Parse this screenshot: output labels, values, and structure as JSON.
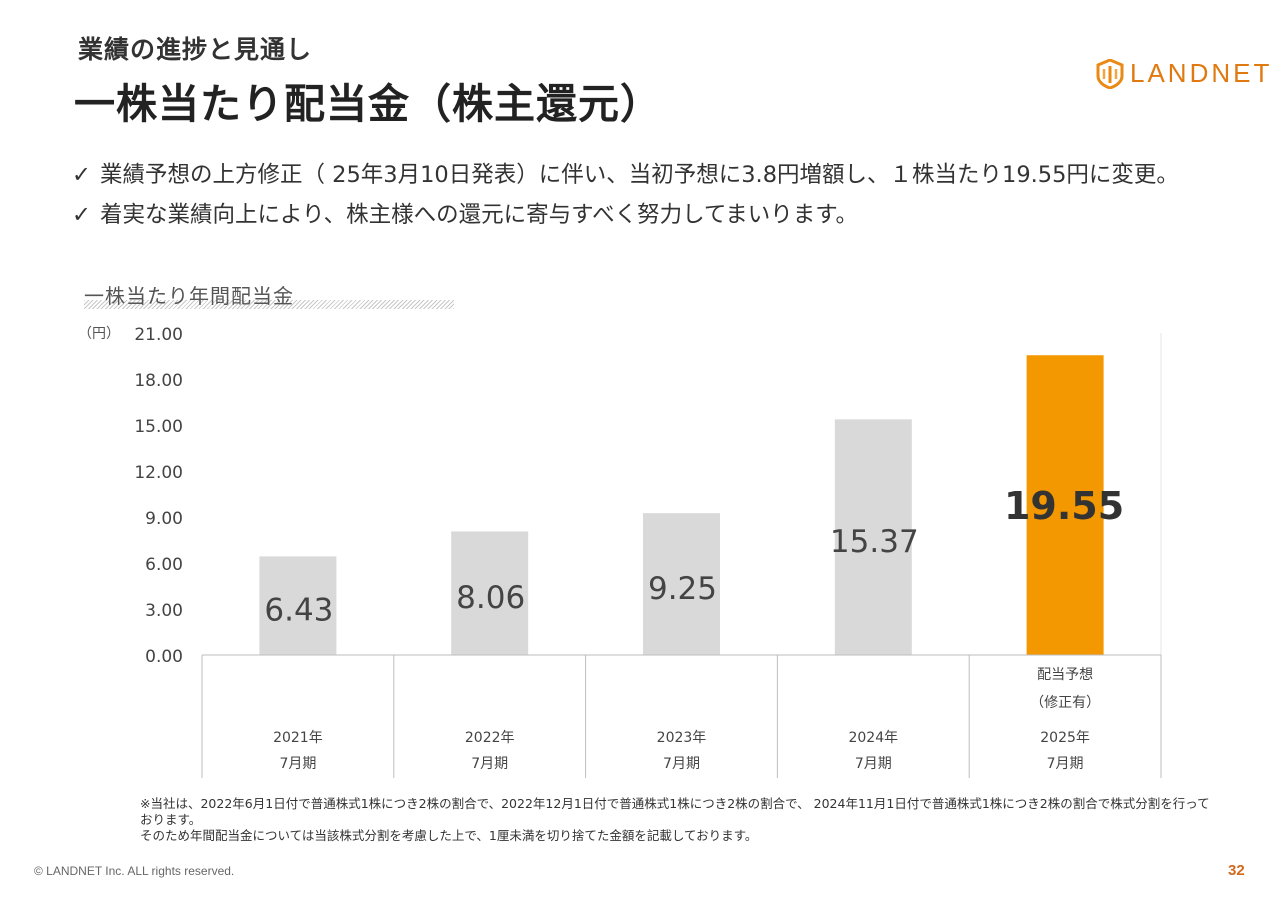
{
  "header": {
    "section": "業績の進捗と見通し",
    "title": "一株当たり配当金（株主還元）",
    "logo_text": "LANDNET",
    "logo_icon": "landnet-shield-icon"
  },
  "bullets": [
    {
      "check": "✓",
      "text": "業績予想の上方修正（ 25年3月10日発表）に伴い、当初予想に3.8円増額し、１株当たり19.55円に変更。"
    },
    {
      "check": "✓",
      "text": "着実な業績向上により、株主様への還元に寄与すべく努力してまいります。"
    }
  ],
  "chart_data": {
    "type": "bar",
    "title": "一株当たり年間配当金",
    "ylabel": "（円）",
    "ylim": [
      0,
      21
    ],
    "yticks": [
      "0.00",
      "3.00",
      "6.00",
      "9.00",
      "12.00",
      "15.00",
      "18.00",
      "21.00"
    ],
    "categories": [
      {
        "top": "",
        "sub": "",
        "year": "2021年",
        "period": "7月期"
      },
      {
        "top": "",
        "sub": "",
        "year": "2022年",
        "period": "7月期"
      },
      {
        "top": "",
        "sub": "",
        "year": "2023年",
        "period": "7月期"
      },
      {
        "top": "",
        "sub": "",
        "year": "2024年",
        "period": "7月期"
      },
      {
        "top": "配当予想",
        "sub": "（修正有）",
        "year": "2025年",
        "period": "7月期"
      }
    ],
    "values": [
      6.43,
      8.06,
      9.25,
      15.37,
      19.55
    ],
    "value_labels": [
      "6.43",
      "8.06",
      "9.25",
      "15.37",
      "19.55"
    ],
    "colors": [
      "#d9d9d9",
      "#d9d9d9",
      "#d9d9d9",
      "#d9d9d9",
      "#f39800"
    ],
    "grid": false,
    "legend": "none"
  },
  "footnote": {
    "line1": "※当社は、2022年6月1日付で普通株式1株につき2株の割合で、2022年12月1日付で普通株式1株につき2株の割合で、 2024年11月1日付で普通株式1株につき2株の割合で株式分割を行っております。",
    "line2": "そのため年間配当金については当該株式分割を考慮した上で、1厘未満を切り捨てた金額を記載しております。"
  },
  "footer": {
    "copyright": "© LANDNET Inc. ALL rights reserved.",
    "page": "32"
  }
}
